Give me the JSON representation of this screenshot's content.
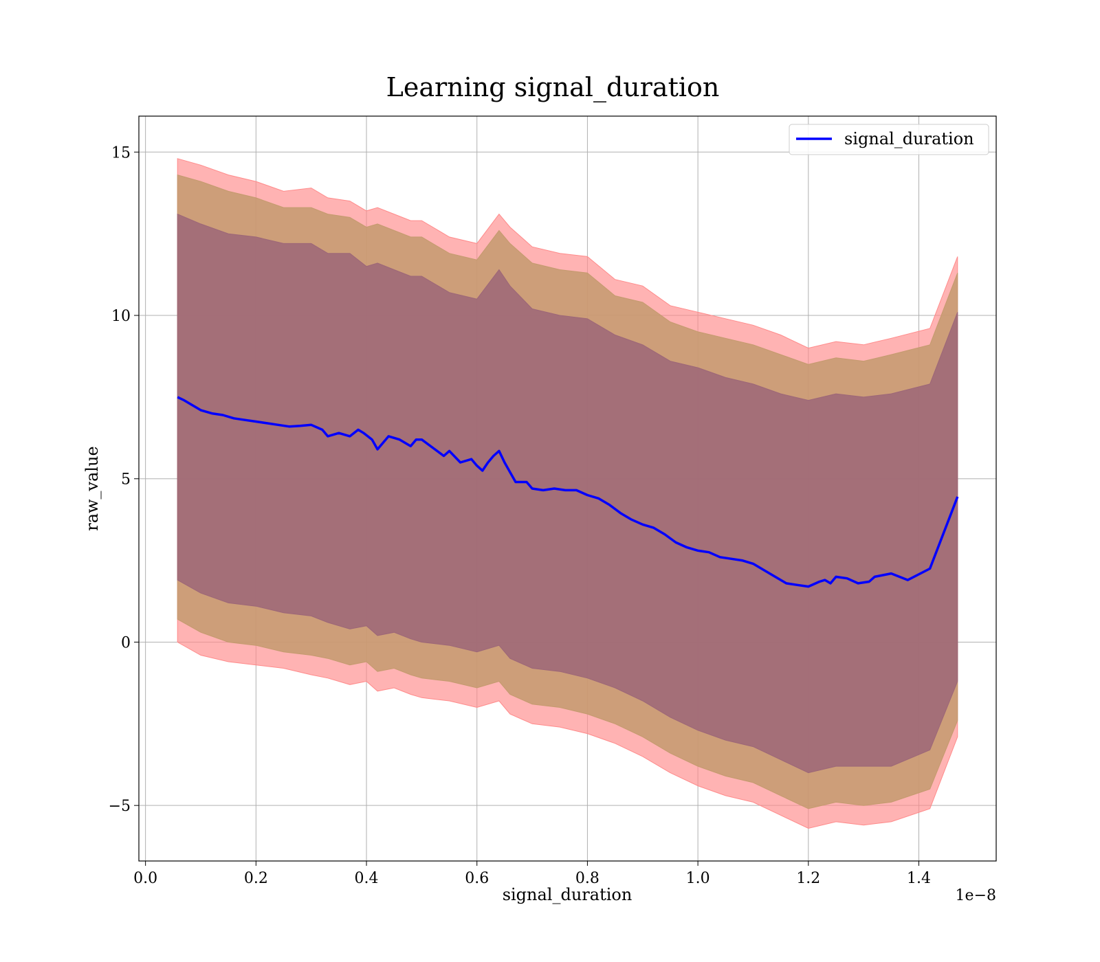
{
  "chart_data": {
    "type": "area",
    "title": "Learning signal_duration",
    "xlabel": "signal_duration",
    "ylabel": "raw_value",
    "x_offset_text": "1e−8",
    "xlim": [
      -0.012,
      1.54
    ],
    "ylim": [
      -6.7,
      16.1
    ],
    "x_ticks": [
      0.0,
      0.2,
      0.4,
      0.6,
      0.8,
      1.0,
      1.2,
      1.4
    ],
    "x_tick_labels": [
      "0.0",
      "0.2",
      "0.4",
      "0.6",
      "0.8",
      "1.0",
      "1.2",
      "1.4"
    ],
    "y_ticks": [
      -5,
      0,
      5,
      10,
      15
    ],
    "y_tick_labels": [
      "−5",
      "0",
      "5",
      "10",
      "15"
    ],
    "grid": true,
    "legend_position": "top-right",
    "series": [
      {
        "name": "signal_duration",
        "color": "#0000ff",
        "x": [
          0.058,
          0.07,
          0.08,
          0.09,
          0.1,
          0.12,
          0.14,
          0.16,
          0.18,
          0.2,
          0.22,
          0.24,
          0.26,
          0.28,
          0.3,
          0.32,
          0.33,
          0.35,
          0.37,
          0.385,
          0.395,
          0.41,
          0.42,
          0.44,
          0.46,
          0.48,
          0.49,
          0.5,
          0.52,
          0.54,
          0.55,
          0.57,
          0.59,
          0.6,
          0.61,
          0.62,
          0.63,
          0.64,
          0.65,
          0.66,
          0.67,
          0.69,
          0.7,
          0.72,
          0.74,
          0.76,
          0.78,
          0.8,
          0.82,
          0.84,
          0.86,
          0.88,
          0.9,
          0.92,
          0.94,
          0.96,
          0.98,
          1.0,
          1.02,
          1.04,
          1.06,
          1.08,
          1.1,
          1.12,
          1.14,
          1.16,
          1.18,
          1.2,
          1.22,
          1.23,
          1.24,
          1.25,
          1.27,
          1.29,
          1.31,
          1.32,
          1.35,
          1.38,
          1.42,
          1.47
        ],
        "y": [
          7.5,
          7.4,
          7.3,
          7.2,
          7.1,
          7.0,
          6.95,
          6.85,
          6.8,
          6.75,
          6.7,
          6.65,
          6.6,
          6.62,
          6.65,
          6.5,
          6.3,
          6.4,
          6.3,
          6.5,
          6.4,
          6.2,
          5.9,
          6.3,
          6.2,
          6.0,
          6.2,
          6.2,
          5.95,
          5.7,
          5.85,
          5.5,
          5.6,
          5.4,
          5.25,
          5.5,
          5.7,
          5.85,
          5.5,
          5.2,
          4.9,
          4.9,
          4.7,
          4.65,
          4.7,
          4.65,
          4.65,
          4.5,
          4.4,
          4.2,
          3.95,
          3.75,
          3.6,
          3.5,
          3.3,
          3.05,
          2.9,
          2.8,
          2.75,
          2.6,
          2.55,
          2.5,
          2.4,
          2.2,
          2.0,
          1.8,
          1.75,
          1.7,
          1.85,
          1.9,
          1.8,
          2.0,
          1.95,
          1.8,
          1.85,
          2.0,
          2.1,
          1.9,
          2.25,
          4.45
        ]
      }
    ],
    "bands": [
      {
        "name": "outer band",
        "color": "#ff8a8a",
        "x": [
          0.058,
          0.1,
          0.15,
          0.2,
          0.25,
          0.3,
          0.33,
          0.37,
          0.4,
          0.42,
          0.45,
          0.48,
          0.5,
          0.55,
          0.6,
          0.64,
          0.66,
          0.7,
          0.75,
          0.8,
          0.85,
          0.9,
          0.95,
          1.0,
          1.05,
          1.1,
          1.15,
          1.2,
          1.25,
          1.3,
          1.35,
          1.42,
          1.47
        ],
        "upper": [
          14.8,
          14.6,
          14.3,
          14.1,
          13.8,
          13.9,
          13.6,
          13.5,
          13.2,
          13.3,
          13.1,
          12.9,
          12.9,
          12.4,
          12.2,
          13.1,
          12.7,
          12.1,
          11.9,
          11.8,
          11.1,
          10.9,
          10.3,
          10.1,
          9.9,
          9.7,
          9.4,
          9.0,
          9.2,
          9.1,
          9.3,
          9.6,
          11.8
        ],
        "lower": [
          0.0,
          -0.4,
          -0.6,
          -0.7,
          -0.8,
          -1.0,
          -1.1,
          -1.3,
          -1.2,
          -1.5,
          -1.4,
          -1.6,
          -1.7,
          -1.8,
          -2.0,
          -1.8,
          -2.2,
          -2.5,
          -2.6,
          -2.8,
          -3.1,
          -3.5,
          -4.0,
          -4.4,
          -4.7,
          -4.9,
          -5.3,
          -5.7,
          -5.5,
          -5.6,
          -5.5,
          -5.1,
          -2.9
        ]
      },
      {
        "name": "middle band",
        "color": "#c49a6e",
        "x": [
          0.058,
          0.1,
          0.15,
          0.2,
          0.25,
          0.3,
          0.33,
          0.37,
          0.4,
          0.42,
          0.45,
          0.48,
          0.5,
          0.55,
          0.6,
          0.64,
          0.66,
          0.7,
          0.75,
          0.8,
          0.85,
          0.9,
          0.95,
          1.0,
          1.05,
          1.1,
          1.15,
          1.2,
          1.25,
          1.3,
          1.35,
          1.42,
          1.47
        ],
        "upper": [
          14.3,
          14.1,
          13.8,
          13.6,
          13.3,
          13.3,
          13.1,
          13.0,
          12.7,
          12.8,
          12.6,
          12.4,
          12.4,
          11.9,
          11.7,
          12.6,
          12.2,
          11.6,
          11.4,
          11.3,
          10.6,
          10.4,
          9.8,
          9.5,
          9.3,
          9.1,
          8.8,
          8.5,
          8.7,
          8.6,
          8.8,
          9.1,
          11.3
        ],
        "lower": [
          0.7,
          0.3,
          0.0,
          -0.1,
          -0.3,
          -0.4,
          -0.5,
          -0.7,
          -0.6,
          -0.9,
          -0.8,
          -1.0,
          -1.1,
          -1.2,
          -1.4,
          -1.2,
          -1.6,
          -1.9,
          -2.0,
          -2.2,
          -2.5,
          -2.9,
          -3.4,
          -3.8,
          -4.1,
          -4.3,
          -4.7,
          -5.1,
          -4.9,
          -5.0,
          -4.9,
          -4.5,
          -2.4
        ]
      },
      {
        "name": "inner band",
        "color": "#9c6678",
        "x": [
          0.058,
          0.1,
          0.15,
          0.2,
          0.25,
          0.3,
          0.33,
          0.37,
          0.4,
          0.42,
          0.45,
          0.48,
          0.5,
          0.55,
          0.6,
          0.64,
          0.66,
          0.7,
          0.75,
          0.8,
          0.85,
          0.9,
          0.95,
          1.0,
          1.05,
          1.1,
          1.15,
          1.2,
          1.25,
          1.3,
          1.35,
          1.42,
          1.47
        ],
        "upper": [
          13.1,
          12.8,
          12.5,
          12.4,
          12.2,
          12.2,
          11.9,
          11.9,
          11.5,
          11.6,
          11.4,
          11.2,
          11.2,
          10.7,
          10.5,
          11.4,
          10.9,
          10.2,
          10.0,
          9.9,
          9.4,
          9.1,
          8.6,
          8.4,
          8.1,
          7.9,
          7.6,
          7.4,
          7.6,
          7.5,
          7.6,
          7.9,
          10.1
        ],
        "lower": [
          1.9,
          1.5,
          1.2,
          1.1,
          0.9,
          0.8,
          0.6,
          0.4,
          0.5,
          0.2,
          0.3,
          0.1,
          0.0,
          -0.1,
          -0.3,
          -0.1,
          -0.5,
          -0.8,
          -0.9,
          -1.1,
          -1.4,
          -1.8,
          -2.3,
          -2.7,
          -3.0,
          -3.2,
          -3.6,
          -4.0,
          -3.8,
          -3.8,
          -3.8,
          -3.3,
          -1.2
        ]
      }
    ]
  }
}
